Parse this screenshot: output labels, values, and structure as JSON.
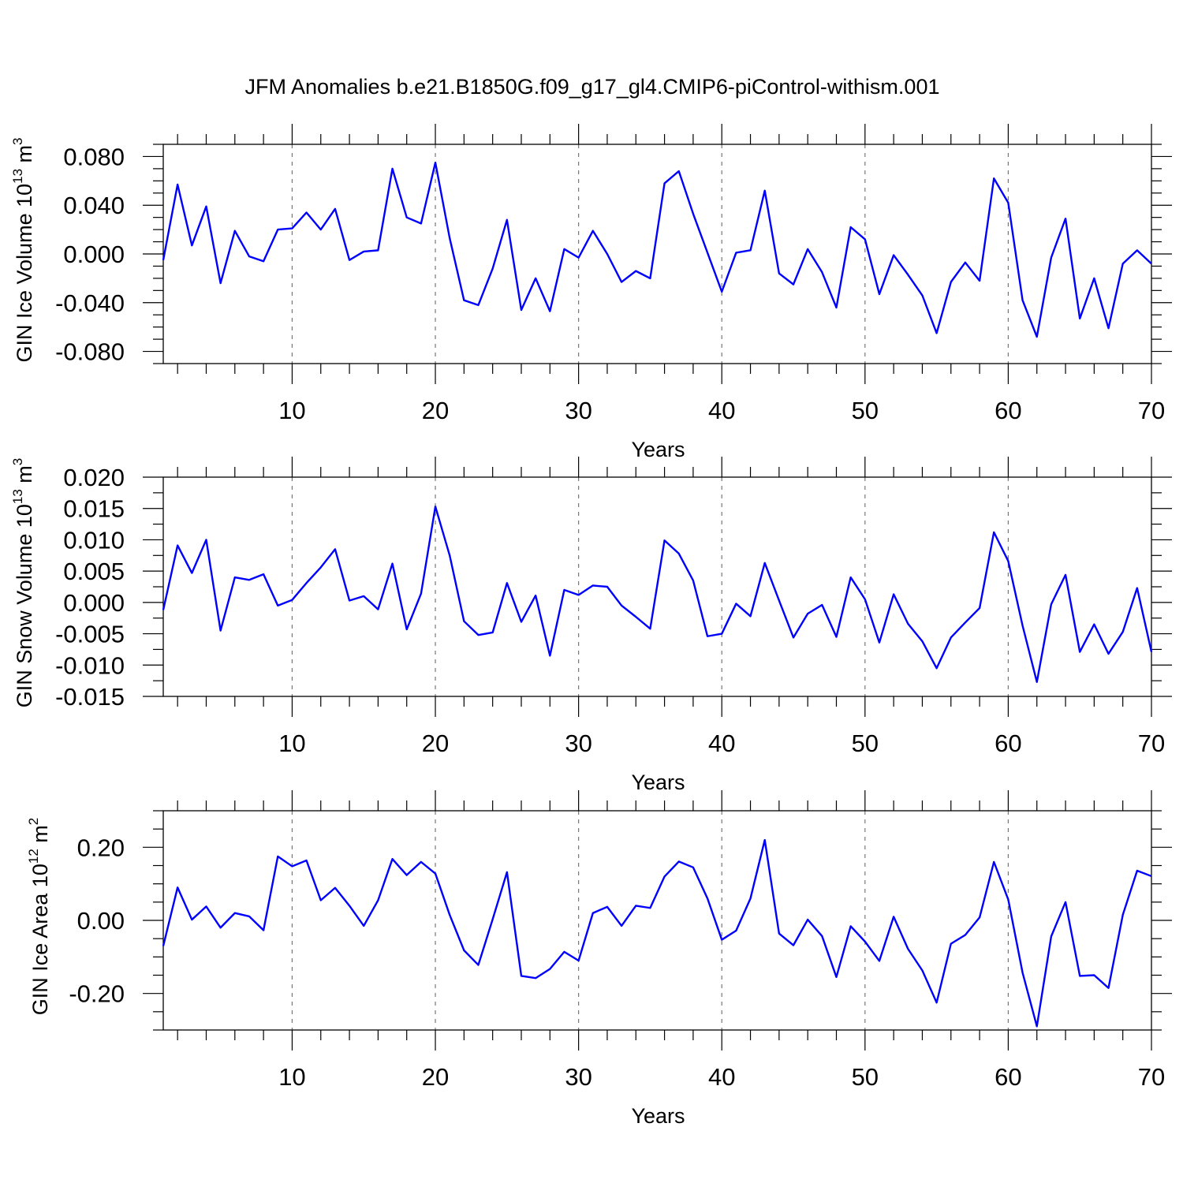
{
  "title": "JFM Anomalies b.e21.B1850G.f09_g17_gl4.CMIP6-piControl-withism.001",
  "colors": {
    "line": "#0000ff",
    "frame": "#000000",
    "grid": "#777777"
  },
  "chart_data": [
    {
      "type": "line",
      "ylabel": {
        "text": "GIN Ice Volume 10",
        "exponent": "13",
        "unit": " m",
        "unit_exponent": "3"
      },
      "xlabel": "Years",
      "xlim": [
        1,
        70
      ],
      "ylim": [
        -0.09,
        0.09
      ],
      "xticks": [
        10,
        20,
        30,
        40,
        50,
        60,
        70
      ],
      "xtick_labels": [
        "10",
        "20",
        "30",
        "40",
        "50",
        "60",
        "70"
      ],
      "yticks": [
        0.08,
        0.04,
        0.0,
        -0.04,
        -0.08
      ],
      "ytick_labels": [
        "0.080",
        "0.040",
        "0.000",
        "-0.040",
        "-0.080"
      ],
      "grid": "vertical dashed at major x ticks",
      "series": [
        {
          "name": "GIN Ice Volume",
          "values": [
            -0.005,
            0.057,
            0.007,
            0.039,
            -0.024,
            0.019,
            -0.002,
            -0.006,
            0.02,
            0.021,
            0.034,
            0.02,
            0.037,
            -0.005,
            0.002,
            0.003,
            0.07,
            0.03,
            0.025,
            0.075,
            0.013,
            -0.038,
            -0.042,
            -0.012,
            0.028,
            -0.046,
            -0.02,
            -0.047,
            0.004,
            -0.003,
            0.019,
            0.0,
            -0.023,
            -0.014,
            -0.02,
            0.058,
            0.068,
            0.033,
            0.001,
            -0.031,
            0.001,
            0.003,
            0.052,
            -0.016,
            -0.025,
            0.004,
            -0.015,
            -0.044,
            0.022,
            0.012,
            -0.033,
            -0.001,
            -0.017,
            -0.034,
            -0.065,
            -0.023,
            -0.007,
            -0.022,
            0.062,
            0.042,
            -0.038,
            -0.068,
            -0.003,
            0.029,
            -0.053,
            -0.02,
            -0.061,
            -0.008,
            0.003,
            -0.008
          ]
        }
      ]
    },
    {
      "type": "line",
      "ylabel": {
        "text": "GIN Snow Volume 10",
        "exponent": "13",
        "unit": " m",
        "unit_exponent": "3"
      },
      "xlabel": "Years",
      "xlim": [
        1,
        70
      ],
      "ylim": [
        -0.015,
        0.02
      ],
      "xticks": [
        10,
        20,
        30,
        40,
        50,
        60,
        70
      ],
      "xtick_labels": [
        "10",
        "20",
        "30",
        "40",
        "50",
        "60",
        "70"
      ],
      "yticks": [
        0.02,
        0.015,
        0.01,
        0.005,
        0.0,
        -0.005,
        -0.01,
        -0.015
      ],
      "ytick_labels": [
        "0.020",
        "0.015",
        "0.010",
        "0.005",
        "0.000",
        "-0.005",
        "-0.010",
        "-0.015"
      ],
      "grid": "vertical dashed at major x ticks",
      "series": [
        {
          "name": "GIN Snow Volume",
          "values": [
            -0.0012,
            0.0091,
            0.0047,
            0.01,
            -0.0045,
            0.004,
            0.0036,
            0.0045,
            -0.0005,
            0.0004,
            0.0031,
            0.0056,
            0.0085,
            0.0003,
            0.001,
            -0.0011,
            0.0062,
            -0.0043,
            0.0014,
            0.0153,
            0.0075,
            -0.003,
            -0.0052,
            -0.0048,
            0.0031,
            -0.0031,
            0.0011,
            -0.0085,
            0.002,
            0.0012,
            0.0027,
            0.0025,
            -0.0005,
            -0.0023,
            -0.0042,
            0.0099,
            0.0078,
            0.0035,
            -0.0054,
            -0.005,
            -0.0002,
            -0.0022,
            0.0063,
            0.0003,
            -0.0056,
            -0.0018,
            -0.0004,
            -0.0055,
            0.004,
            0.0005,
            -0.0064,
            0.0013,
            -0.0034,
            -0.0062,
            -0.0105,
            -0.0056,
            -0.0032,
            -0.0009,
            0.0112,
            0.0066,
            -0.0037,
            -0.0127,
            -0.0003,
            0.0044,
            -0.0079,
            -0.0035,
            -0.0082,
            -0.0047,
            0.0023,
            -0.0079
          ]
        }
      ]
    },
    {
      "type": "line",
      "ylabel": {
        "text": "GIN Ice Area 10",
        "exponent": "12",
        "unit": " m",
        "unit_exponent": "2"
      },
      "xlabel": "Years",
      "xlim": [
        1,
        70
      ],
      "ylim": [
        -0.3,
        0.3
      ],
      "xticks": [
        10,
        20,
        30,
        40,
        50,
        60,
        70
      ],
      "xtick_labels": [
        "10",
        "20",
        "30",
        "40",
        "50",
        "60",
        "70"
      ],
      "yticks": [
        0.2,
        0.0,
        -0.2
      ],
      "ytick_labels": [
        "0.20",
        "0.00",
        "-0.20"
      ],
      "grid": "vertical dashed at major x ticks",
      "series": [
        {
          "name": "GIN Ice Area",
          "values": [
            -0.07,
            0.09,
            0.002,
            0.038,
            -0.02,
            0.02,
            0.011,
            -0.027,
            0.175,
            0.148,
            0.164,
            0.055,
            0.089,
            0.04,
            -0.015,
            0.055,
            0.168,
            0.124,
            0.16,
            0.128,
            0.015,
            -0.082,
            -0.122,
            0.003,
            0.132,
            -0.152,
            -0.158,
            -0.133,
            -0.086,
            -0.11,
            0.02,
            0.037,
            -0.015,
            0.04,
            0.034,
            0.12,
            0.161,
            0.145,
            0.06,
            -0.053,
            -0.028,
            0.06,
            0.22,
            -0.036,
            -0.068,
            0.002,
            -0.043,
            -0.155,
            -0.016,
            -0.058,
            -0.111,
            0.01,
            -0.078,
            -0.137,
            -0.225,
            -0.064,
            -0.04,
            0.008,
            0.16,
            0.057,
            -0.143,
            -0.29,
            -0.044,
            0.05,
            -0.152,
            -0.15,
            -0.185,
            0.015,
            0.136,
            0.121
          ]
        }
      ]
    }
  ]
}
